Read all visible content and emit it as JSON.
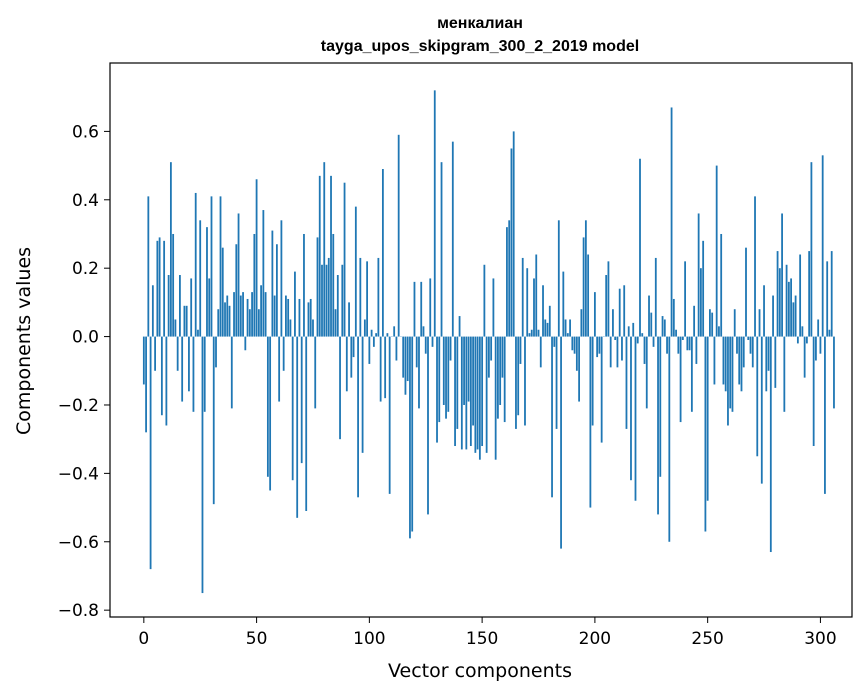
{
  "chart_data": {
    "type": "bar",
    "title_line1": "менкалиан",
    "title_line2": "tayga_upos_skipgram_300_2_2019 model",
    "xlabel": "Vector components",
    "ylabel": "Components values",
    "xlim": [
      -15,
      314
    ],
    "ylim": [
      -0.82,
      0.8
    ],
    "xticks": [
      0,
      50,
      100,
      150,
      200,
      250,
      300
    ],
    "xtick_labels": [
      "0",
      "50",
      "100",
      "150",
      "200",
      "250",
      "300"
    ],
    "yticks": [
      -0.8,
      -0.6,
      -0.4,
      -0.2,
      0.0,
      0.2,
      0.4,
      0.6
    ],
    "ytick_labels": [
      "−0.8",
      "−0.6",
      "−0.4",
      "−0.2",
      "0.0",
      "0.2",
      "0.4",
      "0.6"
    ],
    "grid": false,
    "bar_color": "#1f77b4",
    "values": [
      -0.14,
      -0.28,
      0.41,
      -0.68,
      0.15,
      -0.1,
      0.28,
      0.29,
      -0.23,
      0.28,
      -0.26,
      0.18,
      0.51,
      0.3,
      0.05,
      -0.1,
      0.18,
      -0.19,
      0.09,
      0.09,
      -0.16,
      0.17,
      -0.22,
      0.42,
      0.02,
      0.34,
      -0.75,
      -0.22,
      0.32,
      0.17,
      0.41,
      -0.49,
      -0.09,
      0.08,
      0.41,
      0.26,
      0.1,
      0.12,
      0.09,
      -0.21,
      0.13,
      0.27,
      0.36,
      0.12,
      0.13,
      -0.04,
      0.11,
      0.08,
      0.13,
      0.3,
      0.46,
      0.08,
      0.15,
      0.37,
      0.13,
      -0.41,
      -0.45,
      0.31,
      0.12,
      0.27,
      -0.19,
      0.34,
      -0.1,
      0.12,
      0.11,
      0.05,
      -0.42,
      0.19,
      -0.53,
      0.11,
      -0.37,
      0.3,
      -0.51,
      0.1,
      0.11,
      0.05,
      -0.21,
      0.29,
      0.47,
      0.21,
      0.51,
      0.21,
      0.23,
      0.47,
      0.3,
      0.08,
      0.18,
      -0.3,
      0.21,
      0.45,
      -0.16,
      0.1,
      -0.12,
      -0.06,
      0.38,
      -0.47,
      0.23,
      -0.34,
      0.05,
      0.22,
      -0.08,
      0.02,
      -0.03,
      0.01,
      0.23,
      -0.19,
      0.49,
      -0.18,
      0.01,
      -0.46,
      0.0,
      0.03,
      -0.07,
      0.59,
      0.0,
      -0.12,
      -0.17,
      -0.13,
      -0.59,
      -0.57,
      0.16,
      -0.09,
      -0.21,
      0.16,
      0.03,
      -0.05,
      -0.52,
      0.17,
      -0.03,
      0.72,
      -0.31,
      -0.25,
      0.51,
      -0.2,
      -0.24,
      -0.22,
      -0.07,
      0.57,
      -0.32,
      -0.27,
      0.06,
      -0.33,
      -0.2,
      -0.33,
      -0.19,
      -0.32,
      -0.26,
      -0.34,
      -0.33,
      -0.36,
      -0.32,
      0.21,
      -0.34,
      -0.12,
      -0.07,
      0.17,
      -0.36,
      -0.24,
      -0.2,
      -0.12,
      -0.25,
      0.32,
      0.34,
      0.55,
      0.6,
      -0.27,
      -0.23,
      -0.08,
      0.23,
      -0.26,
      0.2,
      0.01,
      0.02,
      0.17,
      0.24,
      0.02,
      -0.09,
      0.15,
      0.05,
      0.04,
      0.09,
      -0.47,
      -0.03,
      -0.27,
      0.34,
      -0.62,
      0.19,
      0.05,
      0.01,
      0.05,
      -0.04,
      -0.05,
      -0.1,
      -0.19,
      0.08,
      0.29,
      0.34,
      0.24,
      -0.5,
      -0.26,
      0.13,
      -0.06,
      -0.05,
      -0.31,
      0.0,
      0.18,
      0.22,
      -0.09,
      0.08,
      -0.01,
      -0.09,
      0.14,
      -0.07,
      0.15,
      -0.27,
      0.03,
      -0.42,
      0.04,
      -0.48,
      -0.02,
      0.52,
      0.01,
      -0.08,
      -0.21,
      0.12,
      0.07,
      -0.03,
      0.23,
      -0.52,
      -0.41,
      0.06,
      0.05,
      -0.05,
      -0.6,
      0.67,
      0.11,
      0.02,
      -0.05,
      -0.25,
      -0.01,
      0.22,
      -0.04,
      -0.04,
      -0.22,
      0.09,
      -0.08,
      0.36,
      0.2,
      0.28,
      -0.57,
      -0.48,
      0.08,
      0.07,
      -0.14,
      0.5,
      0.03,
      0.3,
      -0.14,
      -0.16,
      -0.26,
      -0.21,
      -0.22,
      0.08,
      -0.05,
      -0.14,
      -0.16,
      -0.09,
      0.26,
      -0.01,
      -0.05,
      -0.09,
      0.41,
      -0.35,
      0.08,
      -0.43,
      0.15,
      -0.16,
      -0.1,
      -0.63,
      0.12,
      -0.15,
      0.25,
      0.2,
      0.36,
      -0.22,
      0.21,
      0.16,
      0.17,
      0.1,
      0.12,
      -0.02,
      0.24,
      0.03,
      -0.12,
      -0.02,
      0.25,
      0.51,
      -0.32,
      -0.07,
      0.05,
      -0.05,
      0.53,
      -0.46,
      0.22,
      0.02,
      0.25,
      -0.21
    ]
  }
}
